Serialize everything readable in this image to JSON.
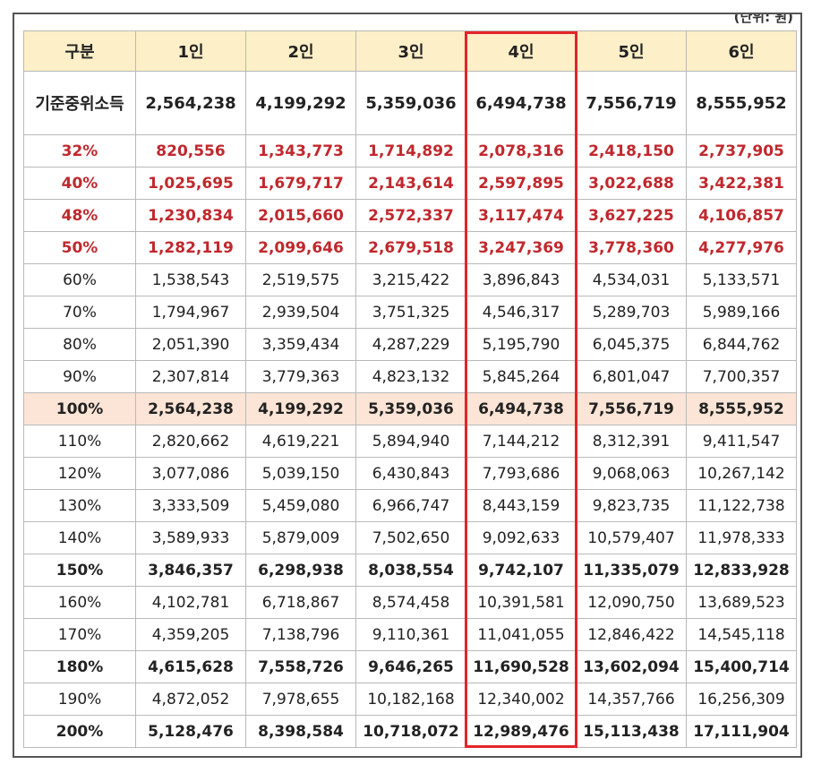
{
  "unit_note": "(단위: 원)",
  "headers": [
    "구분",
    "1인",
    "2인",
    "3인",
    "4인",
    "5인",
    "6인"
  ],
  "rows": [
    {
      "label": "기준중위소득",
      "style": "median",
      "values": [
        "2,564,238",
        "4,199,292",
        "5,359,036",
        "6,494,738",
        "7,556,719",
        "8,555,952"
      ]
    },
    {
      "label": "32%",
      "style": "red",
      "values": [
        "820,556",
        "1,343,773",
        "1,714,892",
        "2,078,316",
        "2,418,150",
        "2,737,905"
      ]
    },
    {
      "label": "40%",
      "style": "red",
      "values": [
        "1,025,695",
        "1,679,717",
        "2,143,614",
        "2,597,895",
        "3,022,688",
        "3,422,381"
      ]
    },
    {
      "label": "48%",
      "style": "red",
      "values": [
        "1,230,834",
        "2,015,660",
        "2,572,337",
        "3,117,474",
        "3,627,225",
        "4,106,857"
      ]
    },
    {
      "label": "50%",
      "style": "red",
      "values": [
        "1,282,119",
        "2,099,646",
        "2,679,518",
        "3,247,369",
        "3,778,360",
        "4,277,976"
      ]
    },
    {
      "label": "60%",
      "style": "normal",
      "values": [
        "1,538,543",
        "2,519,575",
        "3,215,422",
        "3,896,843",
        "4,534,031",
        "5,133,571"
      ]
    },
    {
      "label": "70%",
      "style": "normal",
      "values": [
        "1,794,967",
        "2,939,504",
        "3,751,325",
        "4,546,317",
        "5,289,703",
        "5,989,166"
      ]
    },
    {
      "label": "80%",
      "style": "normal",
      "values": [
        "2,051,390",
        "3,359,434",
        "4,287,229",
        "5,195,790",
        "6,045,375",
        "6,844,762"
      ]
    },
    {
      "label": "90%",
      "style": "normal",
      "values": [
        "2,307,814",
        "3,779,363",
        "4,823,132",
        "5,845,264",
        "6,801,047",
        "7,700,357"
      ]
    },
    {
      "label": "100%",
      "style": "highlight",
      "values": [
        "2,564,238",
        "4,199,292",
        "5,359,036",
        "6,494,738",
        "7,556,719",
        "8,555,952"
      ]
    },
    {
      "label": "110%",
      "style": "normal",
      "values": [
        "2,820,662",
        "4,619,221",
        "5,894,940",
        "7,144,212",
        "8,312,391",
        "9,411,547"
      ]
    },
    {
      "label": "120%",
      "style": "normal",
      "values": [
        "3,077,086",
        "5,039,150",
        "6,430,843",
        "7,793,686",
        "9,068,063",
        "10,267,142"
      ]
    },
    {
      "label": "130%",
      "style": "normal",
      "values": [
        "3,333,509",
        "5,459,080",
        "6,966,747",
        "8,443,159",
        "9,823,735",
        "11,122,738"
      ]
    },
    {
      "label": "140%",
      "style": "normal",
      "values": [
        "3,589,933",
        "5,879,009",
        "7,502,650",
        "9,092,633",
        "10,579,407",
        "11,978,333"
      ]
    },
    {
      "label": "150%",
      "style": "bold",
      "values": [
        "3,846,357",
        "6,298,938",
        "8,038,554",
        "9,742,107",
        "11,335,079",
        "12,833,928"
      ]
    },
    {
      "label": "160%",
      "style": "normal",
      "values": [
        "4,102,781",
        "6,718,867",
        "8,574,458",
        "10,391,581",
        "12,090,750",
        "13,689,523"
      ]
    },
    {
      "label": "170%",
      "style": "normal",
      "values": [
        "4,359,205",
        "7,138,796",
        "9,110,361",
        "11,041,055",
        "12,846,422",
        "14,545,118"
      ]
    },
    {
      "label": "180%",
      "style": "bold",
      "values": [
        "4,615,628",
        "7,558,726",
        "9,646,265",
        "11,690,528",
        "13,602,094",
        "15,400,714"
      ]
    },
    {
      "label": "190%",
      "style": "normal",
      "values": [
        "4,872,052",
        "7,978,655",
        "10,182,168",
        "12,340,002",
        "14,357,766",
        "16,256,309"
      ]
    },
    {
      "label": "200%",
      "style": "bold",
      "values": [
        "5,128,476",
        "8,398,584",
        "10,718,072",
        "12,989,476",
        "15,113,438",
        "17,111,904"
      ]
    }
  ],
  "highlight_column": "4인",
  "colors": {
    "header_bg": "#fdefc8",
    "red_text": "#c0282d",
    "highlight_row_bg": "#fce5d6",
    "highlight_box": "#e4252a"
  }
}
